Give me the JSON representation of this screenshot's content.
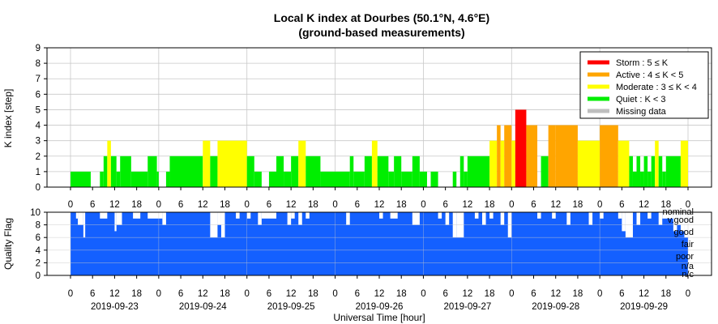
{
  "chart_data": [
    {
      "type": "bar",
      "title": "Local K index at Dourbes (50.1°N, 4.6°E)",
      "subtitle": "(ground-based measurements)",
      "xlabel": "",
      "ylabel": "K index [step]",
      "ylim": [
        0,
        9
      ],
      "y_ticks": [
        "0",
        "1",
        "2",
        "3",
        "4",
        "5",
        "6",
        "7",
        "8",
        "9"
      ],
      "x_hour_ticks": [
        "0",
        "6",
        "12",
        "18"
      ],
      "end_tick": "0",
      "days": [
        "2019-09-23",
        "2019-09-24",
        "2019-09-25",
        "2019-09-26",
        "2019-09-27",
        "2019-09-28",
        "2019-09-29"
      ],
      "grid": true,
      "legend_position": "top-right",
      "legend": [
        {
          "label": "Storm : 5 ≤ K",
          "color": "#ff0000"
        },
        {
          "label": "Active : 4 ≤ K < 5",
          "color": "#ffa500"
        },
        {
          "label": "Moderate : 3 ≤ K < 4",
          "color": "#ffff00"
        },
        {
          "label": "Quiet : K < 3",
          "color": "#00ee00"
        },
        {
          "label": "Missing data",
          "color": "#bebebe"
        }
      ],
      "segments": [
        {
          "x0": 0,
          "x1": 5.5,
          "k": 1
        },
        {
          "x0": 8,
          "x1": 9,
          "k": 1
        },
        {
          "x0": 9,
          "x1": 10,
          "k": 2
        },
        {
          "x0": 10,
          "x1": 11,
          "k": 3
        },
        {
          "x0": 11,
          "x1": 12.5,
          "k": 2
        },
        {
          "x0": 12.5,
          "x1": 13.5,
          "k": 1
        },
        {
          "x0": 13.5,
          "x1": 16.5,
          "k": 2
        },
        {
          "x0": 16.5,
          "x1": 21,
          "k": 1
        },
        {
          "x0": 21,
          "x1": 23.5,
          "k": 2
        },
        {
          "x0": 23.5,
          "x1": 24,
          "k": 1
        },
        {
          "x0": 26,
          "x1": 27,
          "k": 1
        },
        {
          "x0": 27,
          "x1": 36,
          "k": 2
        },
        {
          "x0": 36,
          "x1": 38,
          "k": 3
        },
        {
          "x0": 38,
          "x1": 40,
          "k": 2
        },
        {
          "x0": 40,
          "x1": 48,
          "k": 3
        },
        {
          "x0": 48,
          "x1": 50,
          "k": 2
        },
        {
          "x0": 50,
          "x1": 52,
          "k": 1
        },
        {
          "x0": 54,
          "x1": 56,
          "k": 1
        },
        {
          "x0": 56,
          "x1": 58,
          "k": 2
        },
        {
          "x0": 58,
          "x1": 60,
          "k": 1
        },
        {
          "x0": 60,
          "x1": 62,
          "k": 2
        },
        {
          "x0": 62,
          "x1": 64,
          "k": 3
        },
        {
          "x0": 64,
          "x1": 68,
          "k": 2
        },
        {
          "x0": 68,
          "x1": 76,
          "k": 1
        },
        {
          "x0": 76,
          "x1": 77,
          "k": 2
        },
        {
          "x0": 77,
          "x1": 80,
          "k": 1
        },
        {
          "x0": 80,
          "x1": 82,
          "k": 2
        },
        {
          "x0": 82,
          "x1": 83.5,
          "k": 3
        },
        {
          "x0": 83.5,
          "x1": 86.5,
          "k": 2
        },
        {
          "x0": 86.5,
          "x1": 88,
          "k": 1
        },
        {
          "x0": 88,
          "x1": 90,
          "k": 2
        },
        {
          "x0": 90,
          "x1": 93,
          "k": 1
        },
        {
          "x0": 93,
          "x1": 95,
          "k": 2
        },
        {
          "x0": 95,
          "x1": 97,
          "k": 1
        },
        {
          "x0": 98,
          "x1": 100,
          "k": 1
        },
        {
          "x0": 104,
          "x1": 105,
          "k": 1
        },
        {
          "x0": 106,
          "x1": 107,
          "k": 2
        },
        {
          "x0": 107,
          "x1": 108,
          "k": 1
        },
        {
          "x0": 108,
          "x1": 114,
          "k": 2
        },
        {
          "x0": 114,
          "x1": 116,
          "k": 3
        },
        {
          "x0": 116,
          "x1": 117,
          "k": 4
        },
        {
          "x0": 117,
          "x1": 118,
          "k": 3
        },
        {
          "x0": 118,
          "x1": 120,
          "k": 4
        },
        {
          "x0": 120,
          "x1": 121,
          "k": 3
        },
        {
          "x0": 121,
          "x1": 124,
          "k": 5
        },
        {
          "x0": 124,
          "x1": 127,
          "k": 4
        },
        {
          "x0": 127,
          "x1": 128,
          "k": 0
        },
        {
          "x0": 128,
          "x1": 130,
          "k": 2
        },
        {
          "x0": 130,
          "x1": 132,
          "k": 4
        },
        {
          "x0": 132,
          "x1": 138,
          "k": 4
        },
        {
          "x0": 138,
          "x1": 144,
          "k": 3
        },
        {
          "x0": 144,
          "x1": 149,
          "k": 4
        },
        {
          "x0": 149,
          "x1": 152,
          "k": 3
        },
        {
          "x0": 152,
          "x1": 153,
          "k": 2
        },
        {
          "x0": 153,
          "x1": 154,
          "k": 1
        },
        {
          "x0": 154,
          "x1": 155,
          "k": 2
        },
        {
          "x0": 155,
          "x1": 156,
          "k": 1
        },
        {
          "x0": 156,
          "x1": 157,
          "k": 2
        },
        {
          "x0": 157,
          "x1": 158,
          "k": 1
        },
        {
          "x0": 158,
          "x1": 159,
          "k": 2
        },
        {
          "x0": 159,
          "x1": 160,
          "k": 3
        },
        {
          "x0": 160,
          "x1": 161,
          "k": 2
        },
        {
          "x0": 161,
          "x1": 162,
          "k": 1
        },
        {
          "x0": 162,
          "x1": 166,
          "k": 2
        },
        {
          "x0": 166,
          "x1": 168,
          "k": 3
        }
      ]
    },
    {
      "type": "bar",
      "ylabel": "Quality Flag",
      "xlabel": "Universal Time [hour]",
      "ylim": [
        0,
        10
      ],
      "y_ticks": [
        "0",
        "2",
        "4",
        "6",
        "8",
        "10"
      ],
      "color": "#1460ff",
      "grid": true,
      "quality_labels": [
        "nominal",
        "v.good",
        "good",
        "fair",
        "poor",
        "n/a",
        "n/c"
      ],
      "base_level": 10,
      "dips": [
        {
          "x0": 1.5,
          "x1": 2,
          "q": 9
        },
        {
          "x0": 2,
          "x1": 3.5,
          "q": 8
        },
        {
          "x0": 3.5,
          "x1": 4,
          "q": 6
        },
        {
          "x0": 8,
          "x1": 10,
          "q": 9
        },
        {
          "x0": 12,
          "x1": 12.5,
          "q": 7
        },
        {
          "x0": 12.5,
          "x1": 14,
          "q": 8
        },
        {
          "x0": 17,
          "x1": 19,
          "q": 9
        },
        {
          "x0": 21,
          "x1": 25,
          "q": 9
        },
        {
          "x0": 25,
          "x1": 26,
          "q": 8
        },
        {
          "x0": 38,
          "x1": 40,
          "q": 6
        },
        {
          "x0": 40,
          "x1": 41,
          "q": 8
        },
        {
          "x0": 41,
          "x1": 42,
          "q": 6
        },
        {
          "x0": 45,
          "x1": 46,
          "q": 9
        },
        {
          "x0": 48,
          "x1": 49,
          "q": 9
        },
        {
          "x0": 51,
          "x1": 52,
          "q": 8
        },
        {
          "x0": 52,
          "x1": 56,
          "q": 9
        },
        {
          "x0": 59,
          "x1": 60,
          "q": 8
        },
        {
          "x0": 60,
          "x1": 61,
          "q": 9
        },
        {
          "x0": 62,
          "x1": 63,
          "q": 8
        },
        {
          "x0": 64,
          "x1": 65,
          "q": 9
        },
        {
          "x0": 75,
          "x1": 76,
          "q": 8
        },
        {
          "x0": 84,
          "x1": 85,
          "q": 9
        },
        {
          "x0": 87,
          "x1": 89,
          "q": 9
        },
        {
          "x0": 93,
          "x1": 95,
          "q": 8
        },
        {
          "x0": 100,
          "x1": 101,
          "q": 9
        },
        {
          "x0": 102,
          "x1": 103,
          "q": 8
        },
        {
          "x0": 104,
          "x1": 105,
          "q": 6
        },
        {
          "x0": 105,
          "x1": 107,
          "q": 6
        },
        {
          "x0": 110,
          "x1": 111,
          "q": 9
        },
        {
          "x0": 112,
          "x1": 113,
          "q": 8
        },
        {
          "x0": 114,
          "x1": 115,
          "q": 9
        },
        {
          "x0": 117,
          "x1": 118,
          "q": 8
        },
        {
          "x0": 119,
          "x1": 120,
          "q": 6
        },
        {
          "x0": 127,
          "x1": 128,
          "q": 9
        },
        {
          "x0": 131,
          "x1": 132,
          "q": 9
        },
        {
          "x0": 135,
          "x1": 136,
          "q": 8
        },
        {
          "x0": 141,
          "x1": 142,
          "q": 8
        },
        {
          "x0": 144,
          "x1": 145,
          "q": 9
        },
        {
          "x0": 149,
          "x1": 150,
          "q": 9
        },
        {
          "x0": 150,
          "x1": 151,
          "q": 7
        },
        {
          "x0": 151,
          "x1": 153,
          "q": 6
        },
        {
          "x0": 154,
          "x1": 155,
          "q": 8
        },
        {
          "x0": 157,
          "x1": 158,
          "q": 9
        },
        {
          "x0": 160,
          "x1": 161,
          "q": 8
        },
        {
          "x0": 161,
          "x1": 164,
          "q": 9
        },
        {
          "x0": 164,
          "x1": 165,
          "q": 7
        },
        {
          "x0": 165,
          "x1": 166,
          "q": 8
        },
        {
          "x0": 166,
          "x1": 167,
          "q": 7
        },
        {
          "x0": 167,
          "x1": 168,
          "q": 6
        }
      ]
    }
  ]
}
